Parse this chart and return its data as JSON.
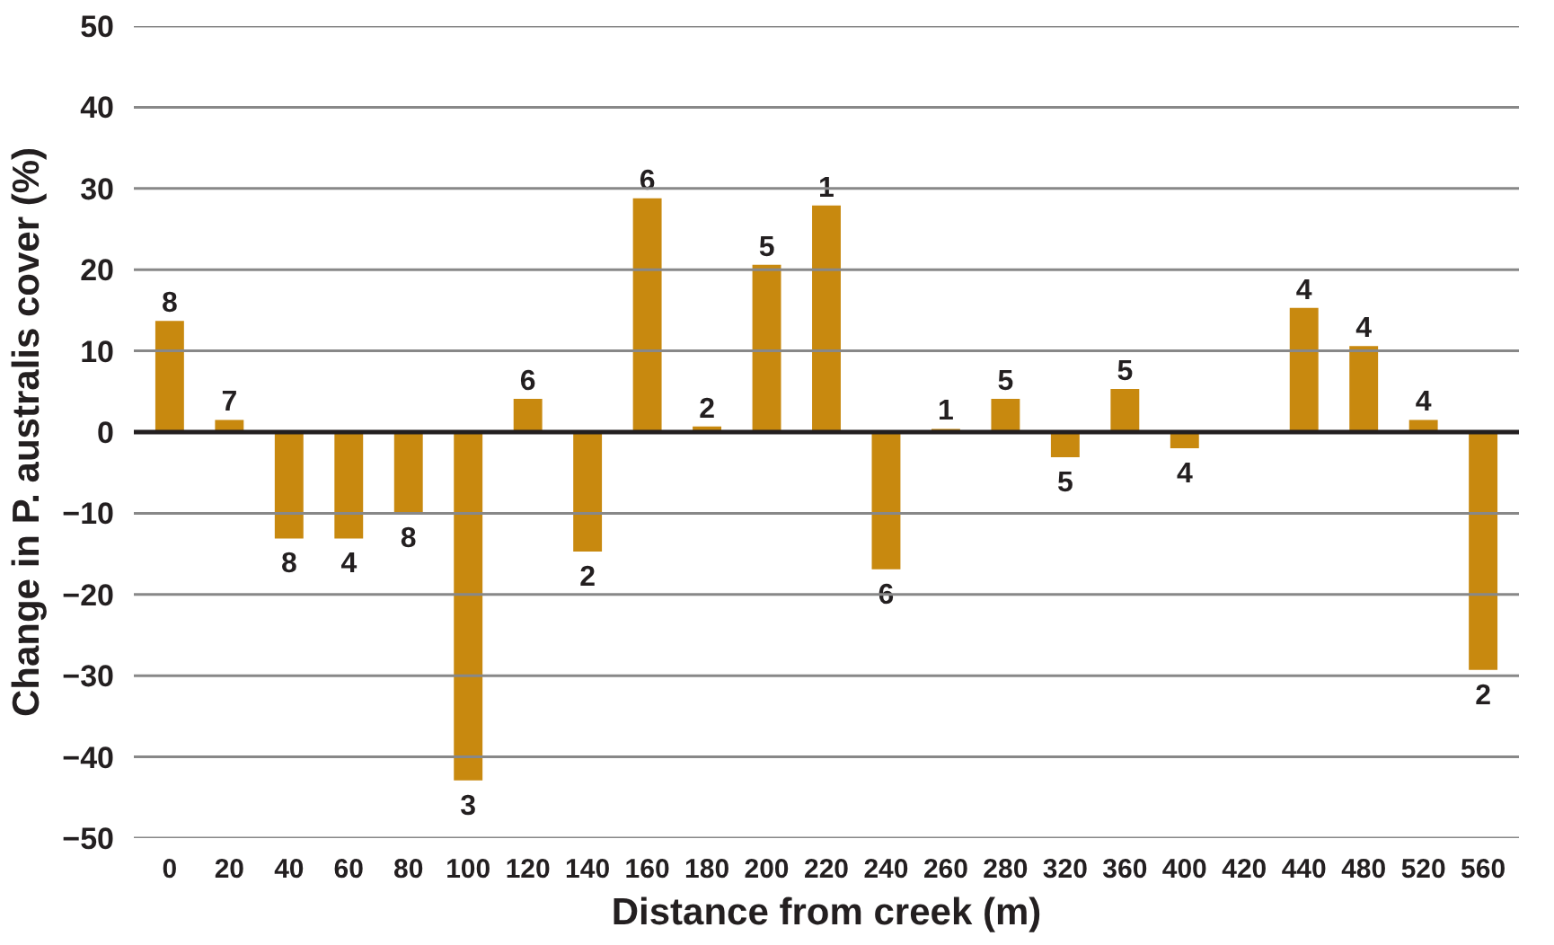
{
  "chart_data": {
    "type": "bar",
    "xlabel": "Distance from creek (m)",
    "ylabel": "Change in P. australis cover (%)",
    "categories": [
      "0",
      "20",
      "40",
      "60",
      "80",
      "100",
      "120",
      "140",
      "160",
      "180",
      "200",
      "220",
      "240",
      "260",
      "280",
      "320",
      "360",
      "400",
      "420",
      "440",
      "480",
      "520",
      "560"
    ],
    "values": [
      13.7,
      1.5,
      -13.1,
      -13.1,
      -10.0,
      -42.9,
      4.1,
      -14.7,
      28.8,
      0.7,
      20.6,
      27.9,
      -16.9,
      0.4,
      4.1,
      -3.1,
      5.3,
      -2.0,
      null,
      15.3,
      10.6,
      1.5,
      -29.3
    ],
    "annotations": [
      {
        "text": "8",
        "x": "0",
        "y": 13.7
      },
      {
        "text": "7",
        "x": "20",
        "y": 1.5
      },
      {
        "text": "8",
        "x": "40",
        "y": -13.1
      },
      {
        "text": "4",
        "x": "60",
        "y": -13.1
      },
      {
        "text": "8",
        "x": "80",
        "y": -10.0
      },
      {
        "text": "3",
        "x": "100",
        "y": -42.9
      },
      {
        "text": "6",
        "x": "120",
        "y": 4.1
      },
      {
        "text": "2",
        "x": "140",
        "y": -14.7
      },
      {
        "text": "6",
        "x": "160",
        "y": 28.8
      },
      {
        "text": "2",
        "x": "180",
        "y": 0.7
      },
      {
        "text": "5",
        "x": "200",
        "y": 20.6
      },
      {
        "text": "1",
        "x": "220",
        "y": 27.9
      },
      {
        "text": "6",
        "x": "240",
        "y": -16.9
      },
      {
        "text": "1",
        "x": "260",
        "y": 0.4
      },
      {
        "text": "5",
        "x": "280",
        "y": 4.1
      },
      {
        "text": "5",
        "x": "320",
        "y": -3.1
      },
      {
        "text": "5",
        "x": "360",
        "y": 5.3
      },
      {
        "text": "4",
        "x": "400",
        "y": -2.0
      },
      {
        "text": "4",
        "x": "440",
        "y": 15.3
      },
      {
        "text": "4",
        "x": "480",
        "y": 10.6
      },
      {
        "text": "4",
        "x": "520",
        "y": 1.5
      },
      {
        "text": "2",
        "x": "560",
        "y": -29.3
      }
    ],
    "color": "#c8890f",
    "ylim": [
      -50,
      50
    ],
    "yticks": [
      -50,
      -40,
      -30,
      -20,
      -10,
      0,
      10,
      20,
      30,
      40,
      50
    ],
    "grid": "y"
  }
}
